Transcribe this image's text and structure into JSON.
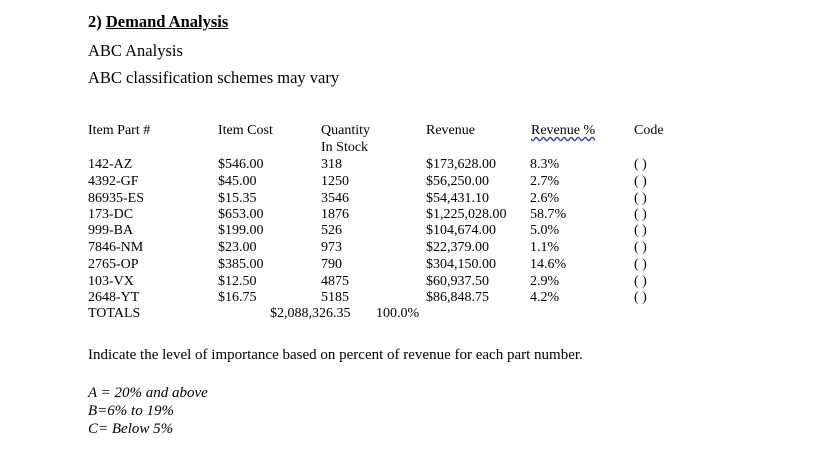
{
  "section": {
    "number": "2)",
    "title": "Demand Analysis"
  },
  "subtitle": "ABC Analysis",
  "note": "ABC classification schemes may vary",
  "table": {
    "headers": {
      "part": "Item Part #",
      "cost": "Item Cost",
      "quantity_line1": "Quantity",
      "quantity_line2": "In Stock",
      "revenue": "Revenue",
      "revenue_pct": "Revenue %",
      "code": "Code"
    },
    "rows": [
      {
        "part": "142-AZ",
        "cost": "$546.00",
        "qty": "318",
        "revenue": "$173,628.00",
        "pct": "8.3%",
        "code": "( )"
      },
      {
        "part": "4392-GF",
        "cost": "$45.00",
        "qty": "1250",
        "revenue": "$56,250.00",
        "pct": "2.7%",
        "code": "( )"
      },
      {
        "part": "86935-ES",
        "cost": "$15.35",
        "qty": "3546",
        "revenue": "$54,431.10",
        "pct": "2.6%",
        "code": "( )"
      },
      {
        "part": "173-DC",
        "cost": "$653.00",
        "qty": "1876",
        "revenue": "$1,225,028.00",
        "pct": "58.7%",
        "code": "( )"
      },
      {
        "part": "999-BA",
        "cost": "$199.00",
        "qty": "526",
        "revenue": "$104,674.00",
        "pct": "5.0%",
        "code": "( )"
      },
      {
        "part": "7846-NM",
        "cost": "$23.00",
        "qty": "973",
        "revenue": "$22,379.00",
        "pct": "1.1%",
        "code": "( )"
      },
      {
        "part": "2765-OP",
        "cost": "$385.00",
        "qty": "790",
        "revenue": "$304,150.00",
        "pct": "14.6%",
        "code": "( )"
      },
      {
        "part": "103-VX",
        "cost": "$12.50",
        "qty": "4875",
        "revenue": "$60,937.50",
        "pct": "2.9%",
        "code": "( )"
      },
      {
        "part": "2648-YT",
        "cost": "$16.75",
        "qty": "5185",
        "revenue": "$86,848.75",
        "pct": "4.2%",
        "code": "( )"
      }
    ],
    "totals": {
      "label": "TOTALS",
      "revenue": "$2,088,326.35",
      "pct": "100.0%"
    }
  },
  "instruction": "Indicate the level of importance based on percent of revenue for each part number.",
  "legend": [
    "A = 20% and above",
    "B=6% to 19%",
    "C= Below 5%"
  ],
  "colors": {
    "text": "#000000",
    "spellcheck_underline": "#2a44c8"
  }
}
